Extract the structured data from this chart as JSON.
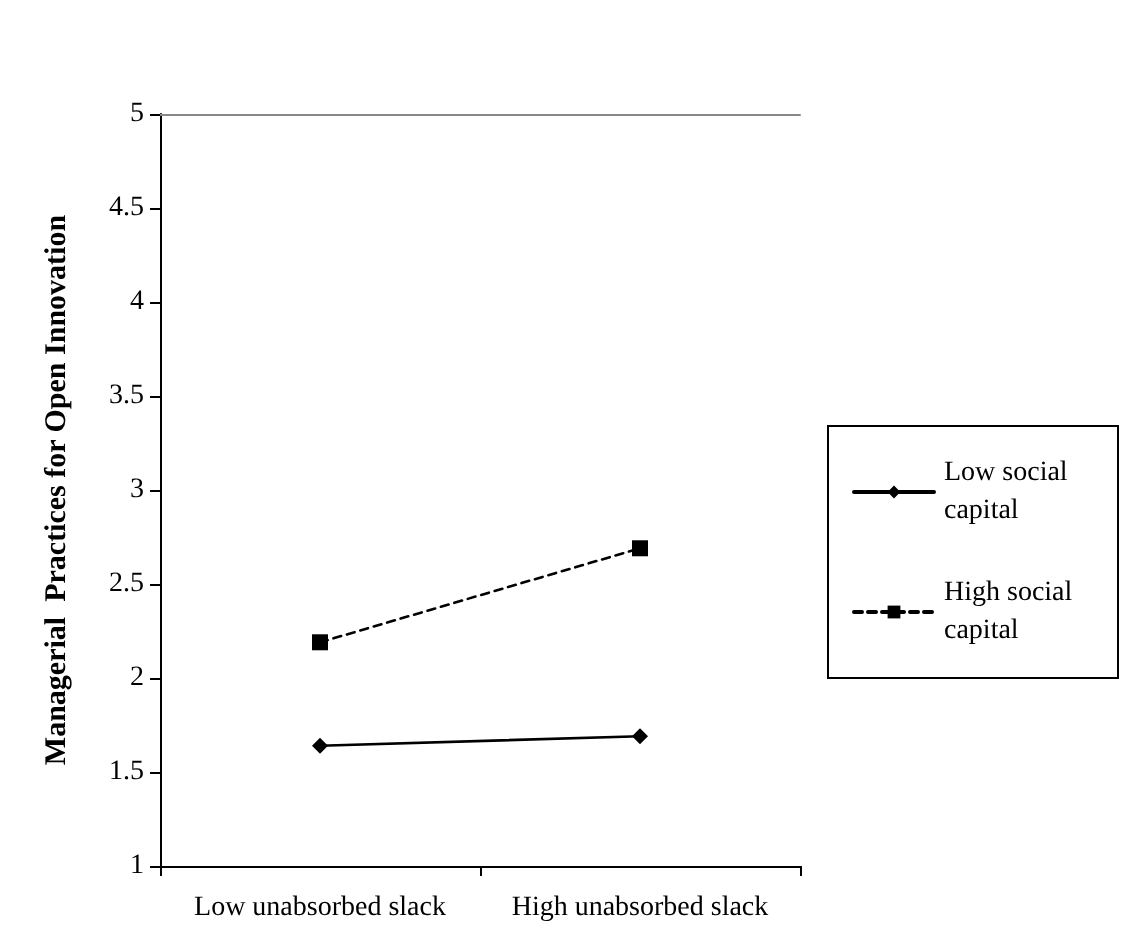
{
  "chart_data": {
    "type": "line",
    "ylabel": "Managerial  Practices for Open Innovation",
    "categories": [
      "Low unabsorbed slack",
      "High unabsorbed slack"
    ],
    "series": [
      {
        "name": "Low social capital",
        "color": "#000000",
        "values": [
          1.64,
          1.69
        ],
        "marker": "diamond",
        "line_style": "solid"
      },
      {
        "name": "High social capital",
        "color": "#000000",
        "values": [
          2.19,
          2.69
        ],
        "marker": "square",
        "line_style": "dashed"
      }
    ],
    "ylim": [
      1,
      5
    ],
    "yticks": [
      1,
      1.5,
      2,
      2.5,
      3,
      3.5,
      4,
      4.5,
      5
    ],
    "grid": false,
    "legend": "right"
  }
}
